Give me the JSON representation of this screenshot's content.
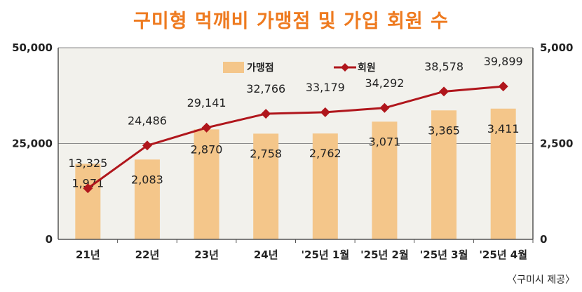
{
  "title": "구미형 먹깨비 가맹점 및 가입 회원 수",
  "source_note": "〈구미시 제공〉",
  "colors": {
    "title": "#ee7a1f",
    "bar": "#f4c68a",
    "line": "#b0161c",
    "marker": "#b0161c",
    "plot_bg": "#f2f1ec",
    "grid": "#8a8a8a"
  },
  "chart_data": {
    "type": "bar+line",
    "title": "구미형 먹깨비 가맹점 및 가입 회원 수",
    "categories": [
      "21년",
      "22년",
      "23년",
      "24년",
      "'25년 1월",
      "'25년 2월",
      "'25년 3월",
      "'25년 4월"
    ],
    "series": [
      {
        "name": "가맹점",
        "type": "bar",
        "axis": "right",
        "values": [
          1971,
          2083,
          2870,
          2758,
          2762,
          3071,
          3365,
          3411
        ],
        "labels": [
          "1,971",
          "2,083",
          "2,870",
          "2,758",
          "2,762",
          "3,071",
          "3,365",
          "3,411"
        ]
      },
      {
        "name": "회원",
        "type": "line",
        "axis": "left",
        "values": [
          13325,
          24486,
          29141,
          32766,
          33179,
          34292,
          38578,
          39899
        ],
        "labels": [
          "13,325",
          "24,486",
          "29,141",
          "32,766",
          "33,179",
          "34,292",
          "38,578",
          "39,899"
        ]
      }
    ],
    "left_axis": {
      "min": 0,
      "max": 50000,
      "ticks": [
        0,
        25000,
        50000
      ],
      "tick_labels": [
        "0",
        "25,000",
        "50,000"
      ]
    },
    "right_axis": {
      "min": 0,
      "max": 5000,
      "ticks": [
        0,
        2500,
        5000
      ],
      "tick_labels": [
        "0",
        "2,500",
        "5,000"
      ]
    },
    "grid": true,
    "legend": "top-center"
  }
}
